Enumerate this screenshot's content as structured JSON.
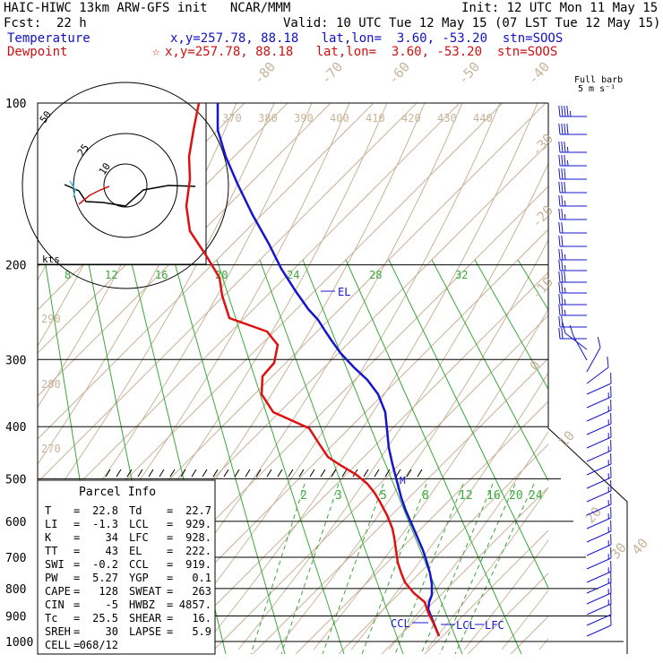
{
  "header": {
    "title": "HAIC-HIWC 13km ARW-GFS init   NCAR/MMM",
    "init": "Init: 12 UTC Mon 11 May 15",
    "fcst_label": "Fcst:",
    "fcst_value": "22 h",
    "valid": "Valid: 10 UTC Tue 12 May 15 (07 LST Tue 12 May 15)",
    "temp_label": "Temperature",
    "temp_loc": "x,y=257.78, 88.18   lat,lon=  3.60, -53.20  stn=SOOS",
    "dew_label": "Dewpoint",
    "dew_marker": "☆",
    "dew_loc": "x,y=257.78, 88.18   lat,lon=  3.60, -53.20  stn=SOOS",
    "barb_title_1": "Full barb",
    "barb_title_2": "5 m s⁻¹"
  },
  "hodograph": {
    "ring_labels": [
      "50",
      "25",
      "10"
    ],
    "units": "kts",
    "temp_path": [
      [
        72,
        206
      ],
      [
        88,
        213
      ],
      [
        96,
        225
      ],
      [
        115,
        226
      ],
      [
        140,
        230
      ],
      [
        160,
        212
      ],
      [
        188,
        207
      ],
      [
        218,
        208
      ]
    ],
    "dew_path": [
      [
        88,
        228
      ],
      [
        100,
        218
      ],
      [
        112,
        212
      ],
      [
        122,
        208
      ]
    ]
  },
  "chart_data": {
    "type": "line",
    "title": "Skew-T log-P sounding",
    "ylabel": "",
    "pressure_levels": [
      100,
      200,
      300,
      400,
      500,
      600,
      700,
      800,
      900,
      1000
    ],
    "isotherm_labels_left": [
      "8",
      "12",
      "16",
      "20",
      "24",
      "28",
      "32"
    ],
    "skew_isotherm_labels": [
      "-80",
      "-70",
      "-60",
      "-50",
      "-40",
      "-30",
      "-20",
      "-10",
      "0",
      "10",
      "20",
      "30",
      "40"
    ],
    "theta_labels": [
      "370",
      "380",
      "390",
      "400",
      "410",
      "420",
      "430",
      "440"
    ],
    "theta_left_labels": [
      "290",
      "280",
      "270"
    ],
    "mixing_ratio_labels": [
      "2",
      "3",
      "5",
      "8",
      "12",
      "16",
      "20",
      "24"
    ],
    "series": [
      {
        "name": "Temperature",
        "color": "#1515d0",
        "points": [
          [
            243,
            115
          ],
          [
            243,
            145
          ],
          [
            252,
            175
          ],
          [
            265,
            205
          ],
          [
            282,
            240
          ],
          [
            300,
            272
          ],
          [
            314,
            300
          ],
          [
            330,
            325
          ],
          [
            344,
            345
          ],
          [
            355,
            357
          ],
          [
            362,
            368
          ],
          [
            370,
            380
          ],
          [
            380,
            394
          ],
          [
            395,
            410
          ],
          [
            410,
            424
          ],
          [
            422,
            440
          ],
          [
            430,
            460
          ],
          [
            432,
            480
          ],
          [
            434,
            500
          ],
          [
            438,
            518
          ],
          [
            443,
            537
          ],
          [
            448,
            556
          ],
          [
            453,
            570
          ],
          [
            460,
            586
          ],
          [
            466,
            600
          ],
          [
            472,
            614
          ],
          [
            476,
            626
          ],
          [
            480,
            640
          ],
          [
            482,
            652
          ],
          [
            482,
            664
          ],
          [
            479,
            672
          ],
          [
            478,
            680
          ],
          [
            482,
            690
          ],
          [
            486,
            700
          ],
          [
            490,
            710
          ]
        ]
      },
      {
        "name": "Dewpoint",
        "color": "#e01010",
        "points": [
          [
            222,
            115
          ],
          [
            216,
            145
          ],
          [
            211,
            175
          ],
          [
            212,
            200
          ],
          [
            208,
            230
          ],
          [
            212,
            258
          ],
          [
            230,
            285
          ],
          [
            245,
            310
          ],
          [
            248,
            330
          ],
          [
            256,
            355
          ],
          [
            298,
            370
          ],
          [
            310,
            385
          ],
          [
            306,
            405
          ],
          [
            293,
            420
          ],
          [
            292,
            440
          ],
          [
            305,
            460
          ],
          [
            345,
            478
          ],
          [
            356,
            495
          ],
          [
            366,
            510
          ],
          [
            378,
            518
          ],
          [
            398,
            530
          ],
          [
            410,
            540
          ],
          [
            418,
            550
          ],
          [
            424,
            560
          ],
          [
            432,
            575
          ],
          [
            438,
            590
          ],
          [
            440,
            600
          ],
          [
            442,
            614
          ],
          [
            444,
            628
          ],
          [
            448,
            640
          ],
          [
            452,
            650
          ],
          [
            462,
            662
          ],
          [
            474,
            672
          ],
          [
            478,
            684
          ],
          [
            484,
            696
          ],
          [
            490,
            710
          ]
        ]
      }
    ],
    "annotations": {
      "el": "EL",
      "m": "M",
      "ccl": "CCL",
      "lcl": "LCL",
      "lfc": "LFC"
    }
  },
  "parcel_info": {
    "title": "Parcel Info",
    "rows": [
      {
        "a": "T",
        "va": "22.8",
        "b": "Td",
        "vb": "22.7"
      },
      {
        "a": "LI",
        "va": "-1.3",
        "b": "LCL",
        "vb": "929."
      },
      {
        "a": "K",
        "va": "34",
        "b": "LFC",
        "vb": "928."
      },
      {
        "a": "TT",
        "va": "43",
        "b": "EL",
        "vb": "222."
      },
      {
        "a": "SWI",
        "va": "-0.2",
        "b": "CCL",
        "vb": "919."
      },
      {
        "a": "PW",
        "va": "5.27",
        "b": "YGP",
        "vb": "0.1"
      },
      {
        "a": "CAPE",
        "va": "128",
        "b": "SWEAT",
        "vb": "263"
      },
      {
        "a": "CIN",
        "va": "-5",
        "b": "HWBZ",
        "vb": "4857."
      },
      {
        "a": "Tc",
        "va": "25.5",
        "b": "SHEAR",
        "vb": "16."
      },
      {
        "a": "SREH",
        "va": "30",
        "b": "LAPSE",
        "vb": "5.9"
      },
      {
        "a": "CELL",
        "va": "068/12",
        "b": "",
        "vb": ""
      }
    ]
  },
  "wind_barbs": {
    "levels": [
      {
        "y": 130,
        "u": -1,
        "v": 0,
        "speed": 22
      },
      {
        "y": 150,
        "u": -1,
        "v": 0,
        "speed": 20
      },
      {
        "y": 170,
        "u": -1,
        "v": 0,
        "speed": 18
      },
      {
        "y": 185,
        "u": -1,
        "v": 0,
        "speed": 17
      },
      {
        "y": 200,
        "u": -1,
        "v": 0,
        "speed": 15
      },
      {
        "y": 215,
        "u": -1,
        "v": 0,
        "speed": 14
      },
      {
        "y": 230,
        "u": -1,
        "v": 0,
        "speed": 13
      },
      {
        "y": 245,
        "u": -1,
        "v": 0,
        "speed": 12
      },
      {
        "y": 260,
        "u": -1,
        "v": 0,
        "speed": 11
      },
      {
        "y": 275,
        "u": -1,
        "v": 0,
        "speed": 11
      },
      {
        "y": 290,
        "u": -1,
        "v": 0,
        "speed": 12
      },
      {
        "y": 302,
        "u": -1,
        "v": 0,
        "speed": 13
      },
      {
        "y": 315,
        "u": -1,
        "v": 0,
        "speed": 14
      },
      {
        "y": 327,
        "u": -1,
        "v": 0,
        "speed": 13
      },
      {
        "y": 340,
        "u": -1,
        "v": 0,
        "speed": 12
      },
      {
        "y": 352,
        "u": -1,
        "v": 0,
        "speed": 12
      },
      {
        "y": 365,
        "u": -1,
        "v": 0,
        "speed": 11
      },
      {
        "y": 378,
        "u": -1,
        "v": 0,
        "speed": 9
      },
      {
        "y": 390,
        "u": -0.8,
        "v": 0.6,
        "speed": 6
      },
      {
        "y": 402,
        "u": -0.5,
        "v": 0.9,
        "speed": 5
      },
      {
        "y": 415,
        "u": 0.5,
        "v": 0.9,
        "speed": 4
      },
      {
        "y": 428,
        "u": 0.8,
        "v": 0.6,
        "speed": 5
      },
      {
        "y": 440,
        "u": 0.9,
        "v": 0.4,
        "speed": 6
      },
      {
        "y": 455,
        "u": 0.9,
        "v": 0.4,
        "speed": 7
      },
      {
        "y": 470,
        "u": 0.9,
        "v": 0.4,
        "speed": 7
      },
      {
        "y": 485,
        "u": 0.9,
        "v": 0.4,
        "speed": 7
      },
      {
        "y": 500,
        "u": 0.9,
        "v": 0.4,
        "speed": 7
      },
      {
        "y": 515,
        "u": 0.9,
        "v": 0.4,
        "speed": 7
      },
      {
        "y": 530,
        "u": 0.9,
        "v": 0.4,
        "speed": 7
      },
      {
        "y": 545,
        "u": 0.9,
        "v": 0.4,
        "speed": 7
      },
      {
        "y": 560,
        "u": 0.9,
        "v": 0.4,
        "speed": 7
      },
      {
        "y": 575,
        "u": 0.9,
        "v": 0.4,
        "speed": 7
      },
      {
        "y": 590,
        "u": 0.9,
        "v": 0.4,
        "speed": 7
      },
      {
        "y": 605,
        "u": 0.9,
        "v": 0.4,
        "speed": 7
      },
      {
        "y": 620,
        "u": 0.9,
        "v": 0.4,
        "speed": 7
      },
      {
        "y": 635,
        "u": 0.9,
        "v": 0.4,
        "speed": 8
      },
      {
        "y": 650,
        "u": 0.9,
        "v": 0.4,
        "speed": 8
      },
      {
        "y": 662,
        "u": 0.9,
        "v": 0.4,
        "speed": 8
      },
      {
        "y": 674,
        "u": 0.9,
        "v": 0.4,
        "speed": 8
      },
      {
        "y": 686,
        "u": 0.9,
        "v": 0.4,
        "speed": 7
      },
      {
        "y": 698,
        "u": 0.9,
        "v": 0.4,
        "speed": 6
      },
      {
        "y": 710,
        "u": 0.9,
        "v": 0.4,
        "speed": 5
      }
    ]
  }
}
